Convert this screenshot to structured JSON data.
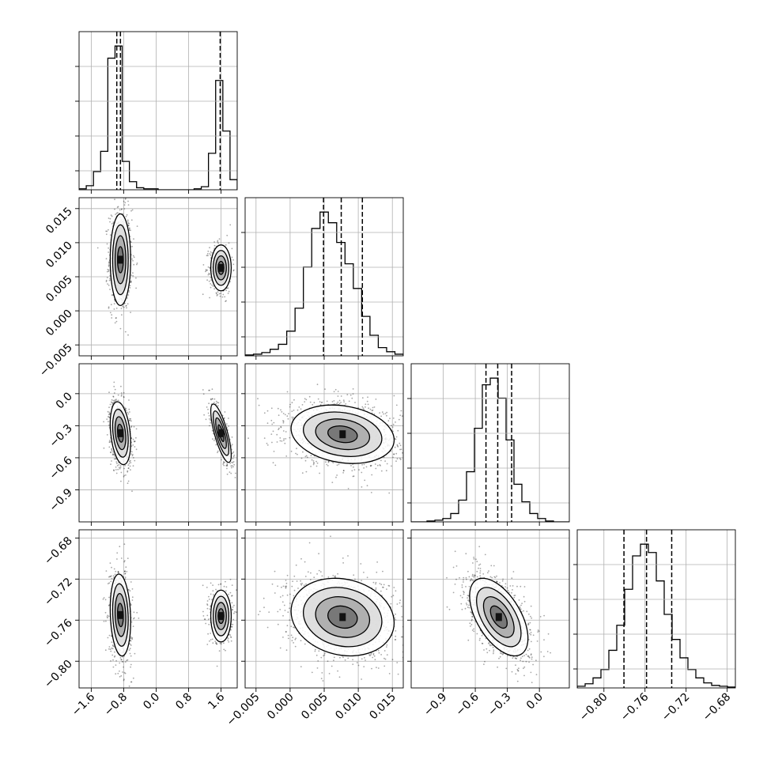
{
  "chart_data": {
    "type": "corner",
    "n_params": 4,
    "grid": true,
    "colors": {
      "line": "#000000",
      "grid": "#b0b0b0",
      "background": "#ffffff",
      "scatter": "#000000"
    },
    "params": [
      {
        "range": [
          -1.9,
          2.0
        ],
        "ticks": [
          "−1.6",
          "−0.8",
          "0.0",
          "0.8",
          "1.6"
        ],
        "tick_values": [
          -1.6,
          -0.8,
          0.0,
          0.8,
          1.6
        ],
        "quantiles": [
          -0.97,
          -0.88,
          1.58
        ],
        "hist": [
          1,
          4,
          18,
          38,
          130,
          142,
          28,
          8,
          2,
          1,
          1,
          0,
          0,
          0,
          0,
          0,
          1,
          3,
          36,
          108,
          58,
          10
        ]
      },
      {
        "range": [
          -0.0066,
          0.0166
        ],
        "ticks": [
          "−0.005",
          "0.000",
          "0.005",
          "0.010",
          "0.015"
        ],
        "tick_values": [
          -0.005,
          0.0,
          0.005,
          0.01,
          0.015
        ],
        "quantiles": [
          0.0049,
          0.0075,
          0.0106
        ],
        "hist": [
          1,
          2,
          4,
          8,
          14,
          30,
          58,
          108,
          155,
          175,
          162,
          138,
          112,
          82,
          48,
          25,
          10,
          5,
          2
        ]
      },
      {
        "range": [
          -1.2,
          0.28
        ],
        "ticks": [
          "−0.9",
          "−0.6",
          "−0.3",
          "0.0"
        ],
        "tick_values": [
          -0.9,
          -0.6,
          -0.3,
          0.0
        ],
        "quantiles": [
          -0.5,
          -0.39,
          -0.26
        ],
        "hist": [
          0,
          0,
          1,
          2,
          4,
          10,
          26,
          60,
          112,
          164,
          172,
          148,
          98,
          45,
          24,
          10,
          4,
          1,
          0,
          0
        ]
      },
      {
        "range": [
          -0.826,
          -0.672
        ],
        "ticks": [
          "−0.80",
          "−0.76",
          "−0.72",
          "−0.68"
        ],
        "tick_values": [
          -0.8,
          -0.76,
          -0.72,
          -0.68
        ],
        "quantiles": [
          -0.7805,
          -0.7585,
          -0.734
        ],
        "hist": [
          2,
          5,
          12,
          22,
          45,
          75,
          118,
          158,
          172,
          162,
          128,
          88,
          58,
          36,
          22,
          12,
          6,
          3,
          2,
          1
        ]
      }
    ],
    "blobs": [
      {
        "row": 1,
        "col": 0,
        "clusters": [
          {
            "mx": -0.88,
            "my": 0.0075,
            "sx": 0.12,
            "sy": 0.0032,
            "r": 0.0,
            "w": 0.62
          },
          {
            "mx": 1.6,
            "my": 0.0063,
            "sx": 0.12,
            "sy": 0.0016,
            "r": 0.0,
            "w": 0.38
          }
        ]
      },
      {
        "row": 2,
        "col": 0,
        "clusters": [
          {
            "mx": -0.88,
            "my": -0.37,
            "sx": 0.12,
            "sy": 0.14,
            "r": -0.3,
            "w": 0.62
          },
          {
            "mx": 1.6,
            "my": -0.37,
            "sx": 0.12,
            "sy": 0.13,
            "r": -0.75,
            "w": 0.38
          }
        ]
      },
      {
        "row": 2,
        "col": 1,
        "clusters": [
          {
            "mx": 0.0077,
            "my": -0.38,
            "sx": 0.0036,
            "sy": 0.13,
            "r": -0.2,
            "w": 1.0
          }
        ]
      },
      {
        "row": 3,
        "col": 0,
        "clusters": [
          {
            "mx": -0.88,
            "my": -0.755,
            "sx": 0.12,
            "sy": 0.019,
            "r": -0.15,
            "w": 0.62
          },
          {
            "mx": 1.6,
            "my": -0.756,
            "sx": 0.12,
            "sy": 0.012,
            "r": 0.0,
            "w": 0.38
          }
        ]
      },
      {
        "row": 3,
        "col": 1,
        "clusters": [
          {
            "mx": 0.0077,
            "my": -0.757,
            "sx": 0.0036,
            "sy": 0.018,
            "r": -0.15,
            "w": 1.0
          }
        ]
      },
      {
        "row": 3,
        "col": 2,
        "clusters": [
          {
            "mx": -0.38,
            "my": -0.757,
            "sx": 0.13,
            "sy": 0.018,
            "r": -0.55,
            "w": 1.0
          }
        ]
      }
    ]
  }
}
